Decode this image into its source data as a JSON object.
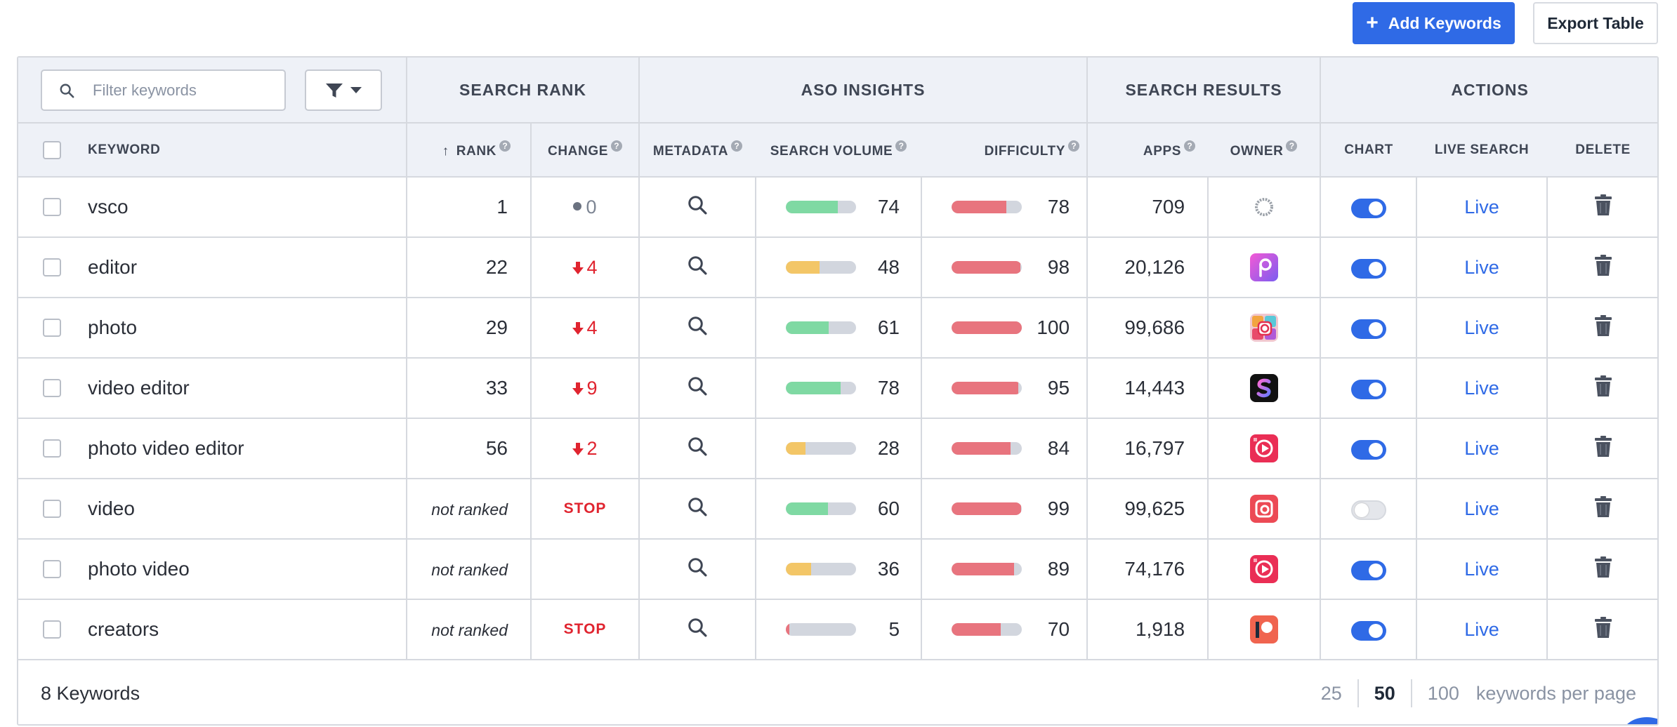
{
  "toolbar": {
    "add_label": "Add Keywords",
    "export_label": "Export Table"
  },
  "filter": {
    "placeholder": "Filter keywords"
  },
  "groups": {
    "search_rank": "SEARCH RANK",
    "aso_insights": "ASO INSIGHTS",
    "search_results": "SEARCH RESULTS",
    "actions": "ACTIONS"
  },
  "columns": {
    "keyword": "KEYWORD",
    "rank": "RANK",
    "change": "CHANGE",
    "metadata": "METADATA",
    "search_volume": "SEARCH VOLUME",
    "difficulty": "DIFFICULTY",
    "apps": "APPS",
    "owner": "OWNER",
    "chart": "CHART",
    "live_search": "LIVE SEARCH",
    "delete": "DELETE"
  },
  "live_label": "Live",
  "colors": {
    "accent": "#2f6ae6",
    "down": "#e0242f",
    "volume_green": "#7fd9a3",
    "volume_yellow": "#f3c667",
    "difficulty_red": "#e8747e"
  },
  "rows": [
    {
      "keyword": "vsco",
      "rank": "1",
      "change": "0",
      "change_type": "neutral",
      "volume": 74,
      "volume_color": "green",
      "difficulty": 78,
      "apps": "709",
      "owner_icon": "vsco-app-icon",
      "chart_on": true
    },
    {
      "keyword": "editor",
      "rank": "22",
      "change": "4",
      "change_type": "down",
      "volume": 48,
      "volume_color": "yellow",
      "difficulty": 98,
      "apps": "20,126",
      "owner_icon": "picsart-app-icon",
      "chart_on": true
    },
    {
      "keyword": "photo",
      "rank": "29",
      "change": "4",
      "change_type": "down",
      "volume": 61,
      "volume_color": "green",
      "difficulty": 100,
      "apps": "99,686",
      "owner_icon": "collage-app-icon",
      "chart_on": true
    },
    {
      "keyword": "video editor",
      "rank": "33",
      "change": "9",
      "change_type": "down",
      "volume": 78,
      "volume_color": "green",
      "difficulty": 95,
      "apps": "14,443",
      "owner_icon": "s-app-icon",
      "chart_on": true
    },
    {
      "keyword": "photo video editor",
      "rank": "56",
      "change": "2",
      "change_type": "down",
      "volume": 28,
      "volume_color": "yellow",
      "difficulty": 84,
      "apps": "16,797",
      "owner_icon": "inshot-app-icon",
      "chart_on": true
    },
    {
      "keyword": "video",
      "rank": "not ranked",
      "change": "STOP",
      "change_type": "stop",
      "volume": 60,
      "volume_color": "green",
      "difficulty": 99,
      "apps": "99,625",
      "owner_icon": "video-frame-app-icon",
      "chart_on": false
    },
    {
      "keyword": "photo video",
      "rank": "not ranked",
      "change": "",
      "change_type": "none",
      "volume": 36,
      "volume_color": "yellow",
      "difficulty": 89,
      "apps": "74,176",
      "owner_icon": "inshot-app-icon",
      "chart_on": true
    },
    {
      "keyword": "creators",
      "rank": "not ranked",
      "change": "STOP",
      "change_type": "stop",
      "volume": 5,
      "volume_color": "red",
      "difficulty": 70,
      "apps": "1,918",
      "owner_icon": "patreon-app-icon",
      "chart_on": true
    }
  ],
  "footer": {
    "count_label": "8 Keywords",
    "page_sizes": [
      "25",
      "50",
      "100"
    ],
    "active_page_size": "50",
    "per_page_label": "keywords per page"
  }
}
